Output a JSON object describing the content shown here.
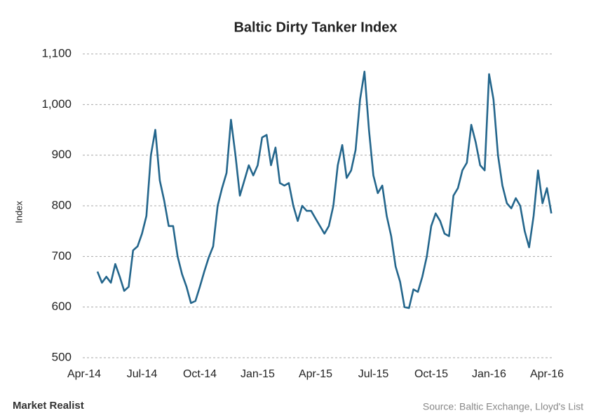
{
  "chart_data": {
    "type": "line",
    "title": "Baltic Dirty Tanker Index",
    "y_label": "Index",
    "source": "Source: Baltic Exchange, Lloyd's List",
    "logo": "Market Realist",
    "categories": [
      "Apr-14",
      null,
      null,
      null,
      null,
      null,
      null,
      null,
      null,
      null,
      null,
      null,
      null,
      "Jul-14",
      null,
      null,
      null,
      null,
      null,
      null,
      null,
      null,
      null,
      null,
      null,
      null,
      "Oct-14",
      null,
      null,
      null,
      null,
      null,
      null,
      null,
      null,
      null,
      null,
      null,
      null,
      "Jan-15",
      null,
      null,
      null,
      null,
      null,
      null,
      null,
      null,
      null,
      null,
      null,
      null,
      "Apr-15",
      null,
      null,
      null,
      null,
      null,
      null,
      null,
      null,
      null,
      null,
      null,
      null,
      "Jul-15",
      null,
      null,
      null,
      null,
      null,
      null,
      null,
      null,
      null,
      null,
      null,
      null,
      "Oct-15",
      null,
      null,
      null,
      null,
      null,
      null,
      null,
      null,
      null,
      null,
      null,
      null,
      "Jan-16",
      null,
      null,
      null,
      null,
      null,
      null,
      null,
      null,
      null,
      null,
      null,
      null,
      "Apr-16",
      null
    ],
    "series": [
      {
        "name": "Baltic Dirty Tanker Index",
        "color": "#24668c",
        "values": [
          null,
          null,
          null,
          670,
          648,
          660,
          648,
          685,
          660,
          632,
          640,
          712,
          720,
          745,
          780,
          900,
          950,
          850,
          810,
          760,
          760,
          700,
          665,
          640,
          608,
          612,
          640,
          670,
          698,
          720,
          800,
          835,
          865,
          970,
          900,
          820,
          850,
          880,
          860,
          880,
          935,
          940,
          880,
          915,
          845,
          840,
          845,
          800,
          770,
          800,
          790,
          790,
          775,
          760,
          745,
          760,
          800,
          880,
          920,
          855,
          870,
          910,
          1010,
          1065,
          950,
          860,
          825,
          840,
          780,
          740,
          680,
          650,
          600,
          598,
          635,
          630,
          660,
          700,
          760,
          785,
          770,
          745,
          740,
          820,
          835,
          870,
          885,
          960,
          925,
          880,
          870,
          1060,
          1010,
          900,
          840,
          805,
          795,
          815,
          800,
          750,
          718,
          780,
          870,
          805,
          835,
          785
        ]
      }
    ],
    "ylim": [
      500,
      1100
    ],
    "yticks": [
      500,
      600,
      700,
      800,
      900,
      {
        "value": 1000,
        "label": "1,000"
      },
      {
        "value": 1100,
        "label": "1,100"
      }
    ],
    "grid": true
  }
}
